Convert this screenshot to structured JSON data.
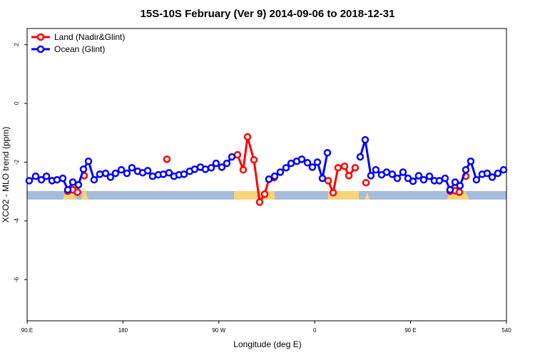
{
  "chart_data": {
    "type": "line",
    "title": "15S-10S February (Ver 9)   2014-09-06 to 2018-12-31",
    "x_label": "Longitude (deg E)",
    "y_label": "XCO2 - MLO trend (ppm)",
    "xlim": [
      90,
      540
    ],
    "xticks": [
      {
        "value": 90,
        "label": "90 E"
      },
      180,
      {
        "value": 270,
        "label": "90 W"
      },
      {
        "value": 360,
        "label": "0"
      },
      {
        "value": 450,
        "label": "90 E"
      },
      540
    ],
    "ylim": [
      -7.4,
      2.55
    ],
    "yticks": [
      2,
      0,
      -2,
      -4,
      -6
    ],
    "legend": "top-left",
    "series": [
      {
        "name": "Land (Nadir&Glint)",
        "color": "#ff0000",
        "x": [
          128.2,
          132.9,
          137.3,
          null,
          143.6,
          null,
          221.2,
          null,
          287.5,
          292.9,
          296.9,
          302.9,
          308.3,
          313.0,
          317.0,
          321.7,
          null,
          372.6,
          377.3,
          381.9,
          388.0,
          392.0,
          398.0,
          null,
          408.1,
          null,
          487.1,
          491.8,
          495.8,
          null,
          501.8
        ],
        "values": [
          -2.99,
          -2.94,
          -3.02,
          null,
          -2.46,
          null,
          -1.9,
          null,
          -1.75,
          -2.26,
          -1.14,
          -1.92,
          -3.36,
          -3.09,
          -2.58,
          -2.53,
          null,
          -2.63,
          -3.04,
          -2.19,
          -2.14,
          -2.46,
          -2.19,
          null,
          -2.7,
          null,
          -2.99,
          -2.97,
          -3.02,
          null,
          -2.48
        ]
      },
      {
        "name": "Ocean (Glint)",
        "color": "#0000ff",
        "x": [
          92.0,
          98.0,
          103.4,
          108.1,
          113.4,
          118.1,
          123.5,
          128.2,
          132.9,
          138.2,
          142.9,
          147.6,
          152.9,
          158.3,
          163.7,
          168.3,
          173.0,
          178.4,
          183.7,
          188.4,
          193.8,
          198.5,
          203.2,
          207.8,
          213.2,
          217.9,
          223.2,
          227.9,
          232.6,
          237.3,
          242.6,
          247.3,
          252.7,
          257.4,
          262.8,
          267.4,
          272.8,
          277.5,
          282.2,
          null,
          317.0,
          322.4,
          327.7,
          333.1,
          337.8,
          343.1,
          347.8,
          353.2,
          357.8,
          362.5,
          367.2,
          371.9,
          null,
          402.7,
          407.4,
          412.7,
          417.4,
          422.8,
          427.5,
          432.8,
          437.5,
          442.9,
          447.6,
          452.3,
          457.6,
          462.3,
          467.7,
          472.3,
          477.0,
          482.4,
          487.1,
          491.8,
          496.4,
          501.8,
          506.5,
          511.8,
          517.2,
          521.9,
          526.6,
          531.9,
          537.3
        ],
        "values": [
          -2.63,
          -2.48,
          -2.6,
          -2.48,
          -2.63,
          -2.6,
          -2.55,
          -2.94,
          -2.68,
          -2.77,
          -2.24,
          -1.97,
          -2.6,
          -2.41,
          -2.38,
          -2.51,
          -2.38,
          -2.26,
          -2.38,
          -2.19,
          -2.31,
          -2.36,
          -2.29,
          -2.48,
          -2.43,
          -2.41,
          -2.36,
          -2.48,
          -2.43,
          -2.41,
          -2.31,
          -2.24,
          -2.17,
          -2.24,
          -2.19,
          -2.04,
          -2.17,
          -2.04,
          -1.82,
          null,
          -2.58,
          -2.48,
          -2.34,
          -2.19,
          -2.04,
          -1.97,
          -1.9,
          -2.02,
          -2.17,
          -2.0,
          -2.55,
          -1.68,
          null,
          -1.82,
          -1.24,
          -2.46,
          -2.26,
          -2.43,
          -2.34,
          -2.41,
          -2.55,
          -2.34,
          -2.55,
          -2.65,
          -2.46,
          -2.6,
          -2.48,
          -2.63,
          -2.63,
          -2.55,
          -2.94,
          -2.68,
          -2.8,
          -2.26,
          -1.97,
          -2.6,
          -2.41,
          -2.38,
          -2.51,
          -2.38,
          -2.26
        ]
      }
    ]
  }
}
